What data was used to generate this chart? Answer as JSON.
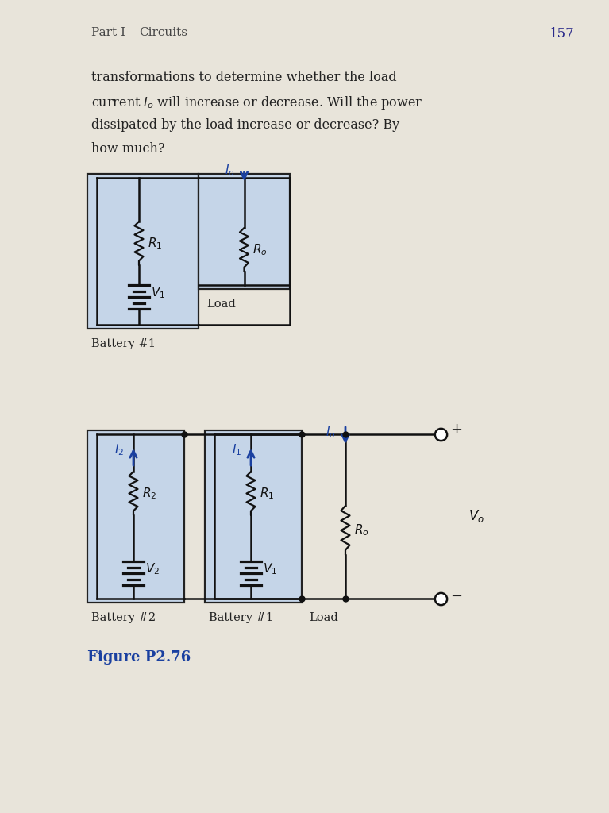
{
  "page_header_left": "Part I    Circuits",
  "page_number": "157",
  "body_text_lines": [
    "transformations to determine whether the load",
    "current $I_o$ will increase or decrease. Will the power",
    "dissipated by the load increase or decrease? By",
    "how much?"
  ],
  "figure_label": "Figure P2.76",
  "bg_color": "#e8e4da",
  "box_fill": "#c5d5e8",
  "box_edge": "#222222",
  "wire_color": "#111111",
  "resistor_color": "#111111",
  "current_arrow_color": "#1a40a0",
  "label_color": "#111111",
  "figure_label_color": "#1a40a0"
}
